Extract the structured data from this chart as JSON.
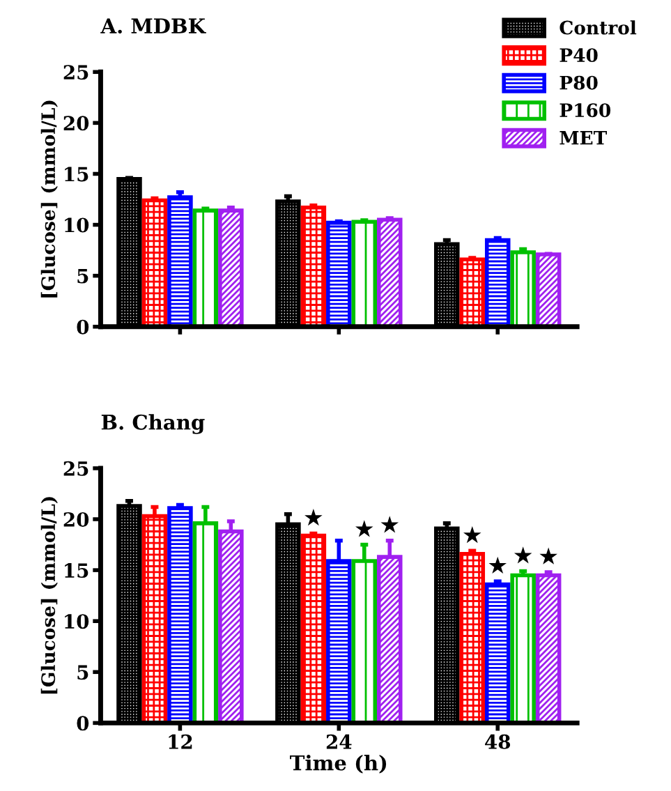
{
  "chart_data": [
    {
      "type": "bar",
      "title": "A. MDBK",
      "ylabel": "[Glucose] (mmol/L)",
      "categories": [
        null,
        null,
        null
      ],
      "ylim": [
        0,
        25
      ],
      "yticks": [
        0,
        5,
        10,
        15,
        20,
        25
      ],
      "tick_labels": "y",
      "legend": "top right",
      "grid": false,
      "series": [
        {
          "name": "Control",
          "color": "#000000",
          "values": [
            14.5,
            12.3,
            8.1
          ],
          "errors": [
            [
              14.5,
              14.6
            ],
            [
              12.3,
              12.8
            ],
            [
              8.1,
              8.5
            ]
          ]
        },
        {
          "name": "P40",
          "color": "#ff0000",
          "values": [
            12.4,
            11.7,
            6.6
          ],
          "errors": [
            [
              12.4,
              12.6
            ],
            [
              11.7,
              11.9
            ],
            [
              6.6,
              6.75
            ]
          ]
        },
        {
          "name": "P80",
          "color": "#0000ff",
          "values": [
            12.7,
            10.2,
            8.5
          ],
          "errors": [
            [
              12.7,
              13.2
            ],
            [
              10.2,
              10.35
            ],
            [
              8.5,
              8.7
            ]
          ]
        },
        {
          "name": "P160",
          "color": "#00c000",
          "values": [
            11.4,
            10.3,
            7.3
          ],
          "errors": [
            [
              11.4,
              11.6
            ],
            [
              10.3,
              10.45
            ],
            [
              7.3,
              7.6
            ]
          ]
        },
        {
          "name": "MET",
          "color": "#a020f0",
          "values": [
            11.4,
            10.5,
            7.1
          ],
          "errors": [
            [
              11.4,
              11.7
            ],
            [
              10.5,
              10.65
            ],
            [
              7.1,
              7.15
            ]
          ]
        }
      ]
    },
    {
      "type": "bar",
      "title": "B. Chang",
      "ylabel": "[Glucose] (mmol/L)",
      "xlabel": "Time (h)",
      "categories": [
        "12",
        "24",
        "48"
      ],
      "ylim": [
        0,
        25
      ],
      "yticks": [
        0,
        5,
        10,
        15,
        20,
        25
      ],
      "grid": false,
      "series": [
        {
          "color": "#000000",
          "values": [
            21.3,
            19.5,
            19.1
          ],
          "errors": [
            [
              21.3,
              21.8
            ],
            [
              19.5,
              20.5
            ],
            [
              19.1,
              19.6
            ]
          ]
        },
        {
          "color": "#ff0000",
          "values": [
            20.3,
            18.4,
            16.6
          ],
          "value_labels": [
            null,
            "★",
            "★"
          ],
          "errors": [
            [
              20.3,
              21.2
            ],
            [
              18.4,
              18.6
            ],
            [
              16.6,
              16.9
            ]
          ]
        },
        {
          "color": "#0000ff",
          "values": [
            21.1,
            15.9,
            13.6
          ],
          "value_labels": [
            null,
            null,
            "★"
          ],
          "errors": [
            [
              21.1,
              21.4
            ],
            [
              15.9,
              17.9
            ],
            [
              13.6,
              13.9
            ]
          ]
        },
        {
          "color": "#00c000",
          "values": [
            19.6,
            15.9,
            14.5
          ],
          "value_labels": [
            null,
            "★",
            "★"
          ],
          "errors": [
            [
              19.6,
              21.2
            ],
            [
              15.9,
              17.5
            ],
            [
              14.5,
              14.9
            ]
          ]
        },
        {
          "color": "#a020f0",
          "values": [
            18.8,
            16.3,
            14.5
          ],
          "value_labels": [
            null,
            "★",
            "★"
          ],
          "errors": [
            [
              18.8,
              19.8
            ],
            [
              16.3,
              17.9
            ],
            [
              14.5,
              14.8
            ]
          ]
        }
      ]
    }
  ]
}
